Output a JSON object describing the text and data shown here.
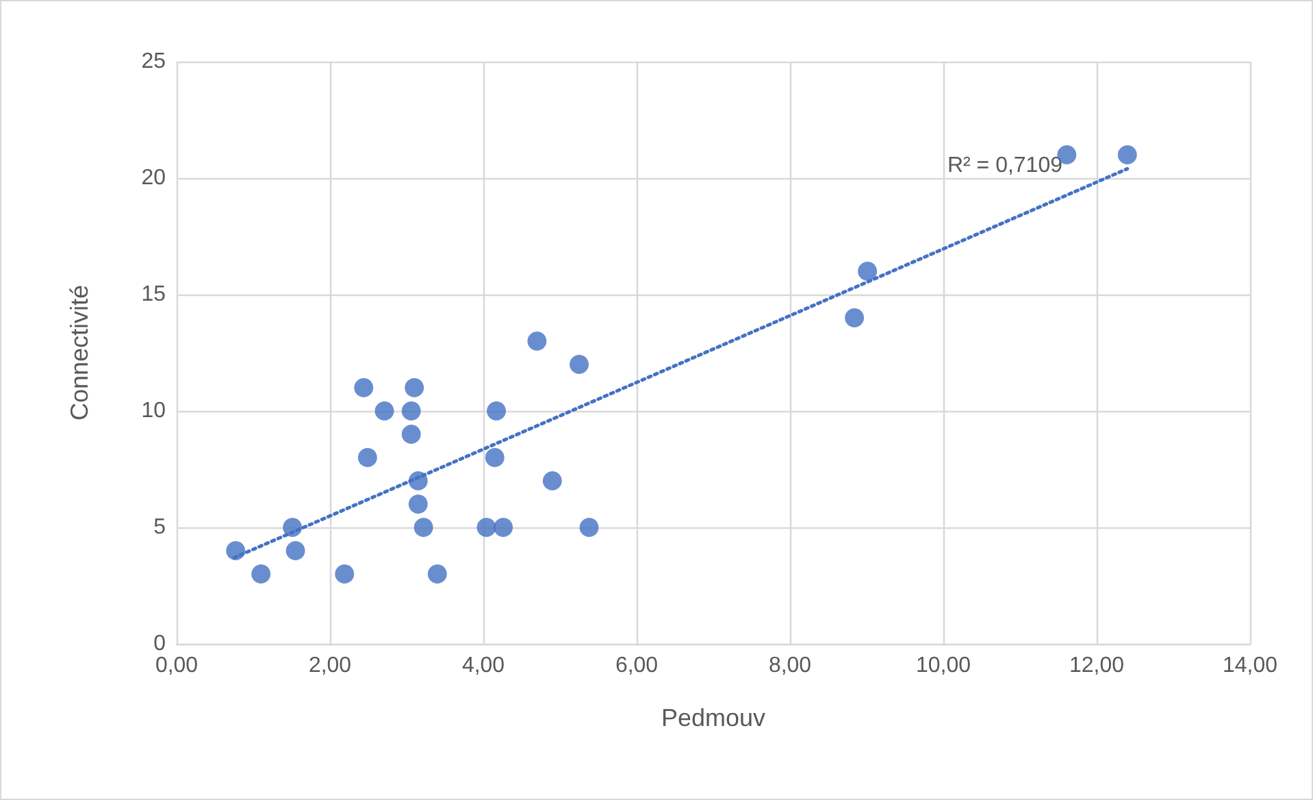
{
  "chart_data": {
    "type": "scatter",
    "xlabel": "Pedmouv",
    "ylabel": "Connectivité",
    "x": [
      0.77,
      1.1,
      1.51,
      1.55,
      2.19,
      2.44,
      2.49,
      2.71,
      3.06,
      3.1,
      3.06,
      3.15,
      3.15,
      3.22,
      3.4,
      4.04,
      4.17,
      4.15,
      4.26,
      4.7,
      4.9,
      5.25,
      5.38,
      8.84,
      9.01,
      11.61,
      12.4
    ],
    "series": [
      {
        "color": "#4472c4",
        "values": [
          4,
          3,
          5,
          4,
          3,
          11,
          8,
          10,
          10,
          11,
          9,
          7,
          6,
          5,
          3,
          5,
          10,
          8,
          5,
          13,
          7,
          12,
          5,
          14,
          16,
          21,
          21
        ],
        "marker": "circle"
      },
      {
        "type": "line",
        "color": "#4472c4",
        "line_style": "dotted",
        "marker": "none",
        "x": [
          0.75,
          12.4
        ],
        "values": [
          3.7,
          20.4
        ]
      }
    ],
    "xlim": [
      0,
      14
    ],
    "xticks": [
      {
        "value": 0,
        "label": "0,00"
      },
      {
        "value": 2,
        "label": "2,00"
      },
      {
        "value": 4,
        "label": "4,00"
      },
      {
        "value": 6,
        "label": "6,00"
      },
      {
        "value": 8,
        "label": "8,00"
      },
      {
        "value": 10,
        "label": "10,00"
      },
      {
        "value": 12,
        "label": "12,00"
      },
      {
        "value": 14,
        "label": "14,00"
      }
    ],
    "ylim": [
      0,
      25
    ],
    "yticks": [
      0,
      5,
      10,
      15,
      20,
      25
    ],
    "grid": true,
    "annotations": [
      "R² = 0,7109"
    ]
  }
}
